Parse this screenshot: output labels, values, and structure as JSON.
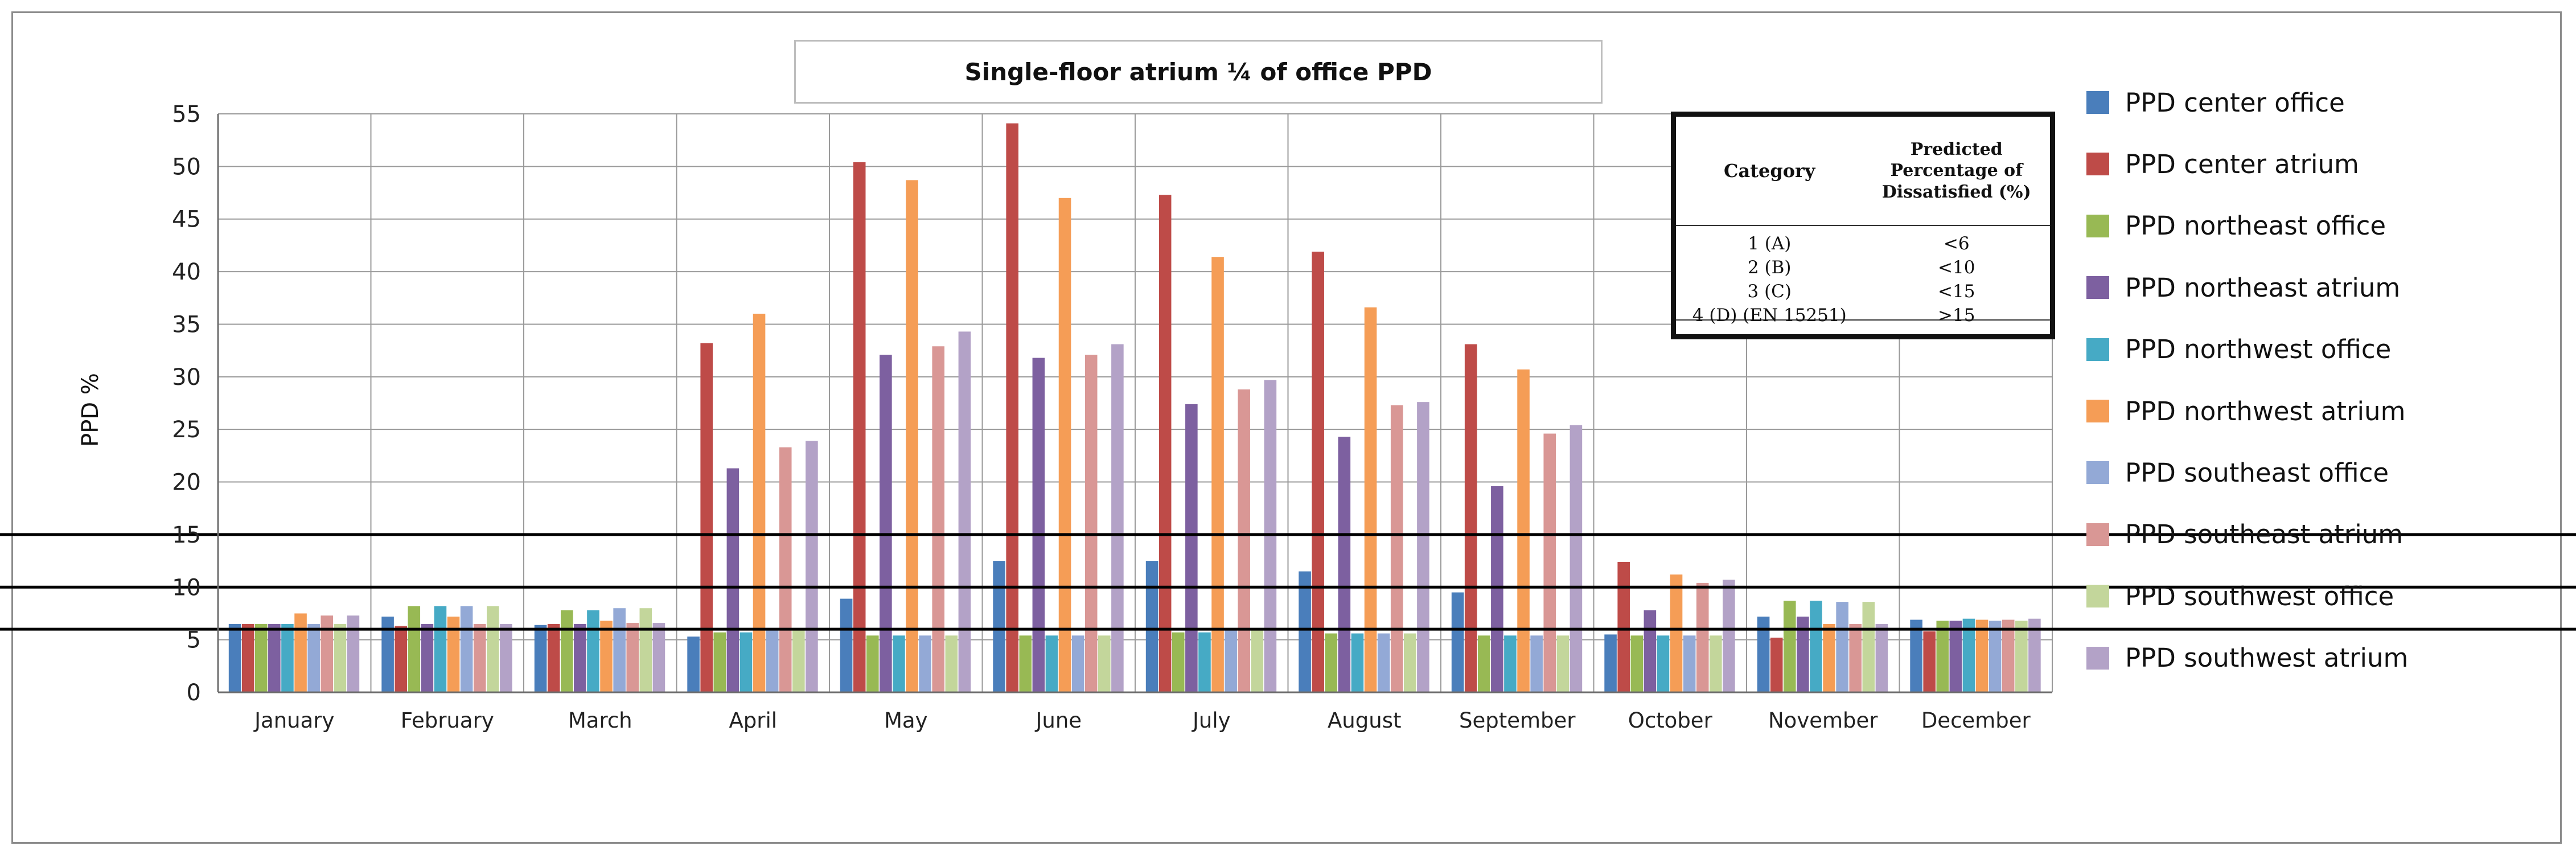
{
  "chart_data": {
    "type": "bar",
    "title": "Single-floor atrium ¼ of office PPD",
    "ylabel": "PPD %",
    "xlabel": "",
    "ylim": [
      0,
      55
    ],
    "yticks": [
      0,
      5,
      10,
      15,
      20,
      25,
      30,
      35,
      40,
      45,
      50,
      55
    ],
    "grid": true,
    "legend_position": "right",
    "categories": [
      "January",
      "February",
      "March",
      "April",
      "May",
      "June",
      "July",
      "August",
      "September",
      "October",
      "November",
      "December"
    ],
    "reference_lines": [
      6,
      10,
      15
    ],
    "series": [
      {
        "name": "PPD center office",
        "color": "#4a7ebb",
        "values": [
          6.5,
          7.2,
          6.4,
          5.3,
          8.9,
          12.5,
          12.5,
          11.5,
          9.5,
          5.5,
          7.2,
          6.9
        ]
      },
      {
        "name": "PPD center atrium",
        "color": "#be4b48",
        "values": [
          6.5,
          6.3,
          6.5,
          33.2,
          50.4,
          54.1,
          47.3,
          41.9,
          33.1,
          12.4,
          5.2,
          5.8
        ]
      },
      {
        "name": "PPD northeast office",
        "color": "#98b954",
        "values": [
          6.5,
          8.2,
          7.8,
          5.7,
          5.4,
          5.4,
          5.7,
          5.6,
          5.4,
          5.4,
          8.7,
          6.8
        ]
      },
      {
        "name": "PPD northeast atrium",
        "color": "#7d60a0",
        "values": [
          6.5,
          6.5,
          6.5,
          21.3,
          32.1,
          31.8,
          27.4,
          24.3,
          19.6,
          7.8,
          7.2,
          6.8
        ]
      },
      {
        "name": "PPD northwest office",
        "color": "#46aac5",
        "values": [
          6.5,
          8.2,
          7.8,
          5.7,
          5.4,
          5.4,
          5.7,
          5.6,
          5.4,
          5.4,
          8.7,
          7.0
        ]
      },
      {
        "name": "PPD northwest atrium",
        "color": "#f59d56",
        "values": [
          7.5,
          7.2,
          6.8,
          36.0,
          48.7,
          47.0,
          41.4,
          36.6,
          30.7,
          11.2,
          6.5,
          6.9
        ]
      },
      {
        "name": "PPD southeast office",
        "color": "#93a9d6",
        "values": [
          6.5,
          8.2,
          8.0,
          5.9,
          5.4,
          5.4,
          5.9,
          5.6,
          5.4,
          5.4,
          8.6,
          6.8
        ]
      },
      {
        "name": "PPD southeast atrium",
        "color": "#d99795",
        "values": [
          7.3,
          6.5,
          6.6,
          23.3,
          32.9,
          32.1,
          28.8,
          27.3,
          24.6,
          10.4,
          6.5,
          6.9
        ]
      },
      {
        "name": "PPD southwest office",
        "color": "#c3d69b",
        "values": [
          6.5,
          8.2,
          8.0,
          6.0,
          5.4,
          5.4,
          5.9,
          5.6,
          5.4,
          5.4,
          8.6,
          6.8
        ]
      },
      {
        "name": "PPD southwest atrium",
        "color": "#b3a2c7",
        "values": [
          7.3,
          6.5,
          6.6,
          23.9,
          34.3,
          33.1,
          29.7,
          27.6,
          25.4,
          10.7,
          6.5,
          7.0
        ]
      }
    ]
  },
  "category_table": {
    "header_category": "Category",
    "header_ppd": [
      "Predicted",
      "Percentage of",
      "Dissatisfied (%)"
    ],
    "rows": [
      {
        "category": "1 (A)",
        "ppd": "<6"
      },
      {
        "category": "2 (B)",
        "ppd": "<10"
      },
      {
        "category": "3 (C)",
        "ppd": "<15"
      },
      {
        "category": "4 (D) (EN 15251)",
        "ppd": ">15"
      }
    ]
  }
}
